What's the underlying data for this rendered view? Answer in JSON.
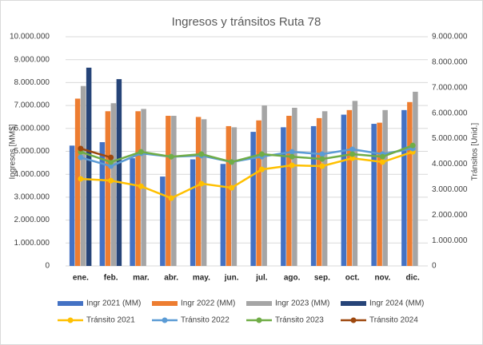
{
  "chart_data": {
    "type": "bar",
    "title": "Ingresos y tránsitos Ruta 78",
    "ylabel": "Ingresos [MM$]",
    "y2label": "Tránsitos [Unid.]",
    "categories": [
      "ene.",
      "feb.",
      "mar.",
      "abr.",
      "may.",
      "jun.",
      "jul.",
      "ago.",
      "sep.",
      "oct.",
      "nov.",
      "dic."
    ],
    "ylim": [
      0,
      10000000
    ],
    "yticks": [
      0,
      {
        "value": 1000000,
        "label": "1.000.000"
      },
      {
        "value": 2000000,
        "label": "2.000.000"
      },
      {
        "value": 3000000,
        "label": "3.000.000"
      },
      {
        "value": 4000000,
        "label": "4.000.000"
      },
      {
        "value": 5000000,
        "label": "5.000.000"
      },
      {
        "value": 6000000,
        "label": "6.000.000"
      },
      {
        "value": 7000000,
        "label": "7.000.000"
      },
      {
        "value": 8000000,
        "label": "8.000.000"
      },
      {
        "value": 9000000,
        "label": "9.000.000"
      },
      {
        "value": 10000000,
        "label": "10.000.000"
      }
    ],
    "y2lim": [
      0,
      9000000
    ],
    "y2ticks": [
      0,
      {
        "value": 1000000,
        "label": "1.000.000"
      },
      {
        "value": 2000000,
        "label": "2.000.000"
      },
      {
        "value": 3000000,
        "label": "3.000.000"
      },
      {
        "value": 4000000,
        "label": "4.000.000"
      },
      {
        "value": 5000000,
        "label": "5.000.000"
      },
      {
        "value": 6000000,
        "label": "6.000.000"
      },
      {
        "value": 7000000,
        "label": "7.000.000"
      },
      {
        "value": 8000000,
        "label": "8.000.000"
      },
      {
        "value": 9000000,
        "label": "9.000.000"
      }
    ],
    "grid": true,
    "legend": "bottom",
    "series": [
      {
        "name": "Ingr 2021 (MM)",
        "color": "#4472c4",
        "values": [
          5250000,
          5400000,
          4700000,
          3900000,
          4650000,
          4450000,
          5850000,
          6050000,
          6100000,
          6600000,
          6200000,
          6800000
        ]
      },
      {
        "name": "Ingr 2022 (MM)",
        "color": "#ed7d31",
        "values": [
          7300000,
          6750000,
          6750000,
          6550000,
          6500000,
          6100000,
          6350000,
          6550000,
          6450000,
          6800000,
          6250000,
          7150000
        ]
      },
      {
        "name": "Ingr 2023 (MM)",
        "color": "#a5a5a5",
        "values": [
          7850000,
          7100000,
          6850000,
          6550000,
          6400000,
          6050000,
          7000000,
          6900000,
          6750000,
          7200000,
          6800000,
          7600000
        ]
      },
      {
        "name": "Ingr 2024 (MM)",
        "color": "#264478",
        "values": [
          8650000,
          8150000,
          null,
          null,
          null,
          null,
          null,
          null,
          null,
          null,
          null,
          null
        ]
      },
      {
        "name": "Tránsito 2021",
        "color": "#ffc000",
        "type": "line",
        "axis": "y2",
        "values": [
          3420000,
          3350000,
          3130000,
          2660000,
          3230000,
          3070000,
          3790000,
          3950000,
          3920000,
          4230000,
          4080000,
          4480000
        ]
      },
      {
        "name": "Tránsito 2022",
        "color": "#5b9bd5",
        "type": "line",
        "axis": "y2",
        "values": [
          4260000,
          3920000,
          4420000,
          4290000,
          4330000,
          4080000,
          4290000,
          4480000,
          4390000,
          4580000,
          4390000,
          4610000
        ]
      },
      {
        "name": "Tránsito 2023",
        "color": "#70ad47",
        "type": "line",
        "axis": "y2",
        "values": [
          4480000,
          4080000,
          4480000,
          4290000,
          4390000,
          4080000,
          4390000,
          4290000,
          4200000,
          4390000,
          4290000,
          4730000
        ]
      },
      {
        "name": "Tránsito 2024",
        "color": "#9e480e",
        "type": "line",
        "axis": "y2",
        "values": [
          4610000,
          4260000,
          null,
          null,
          null,
          null,
          null,
          null,
          null,
          null,
          null,
          null
        ]
      }
    ]
  }
}
